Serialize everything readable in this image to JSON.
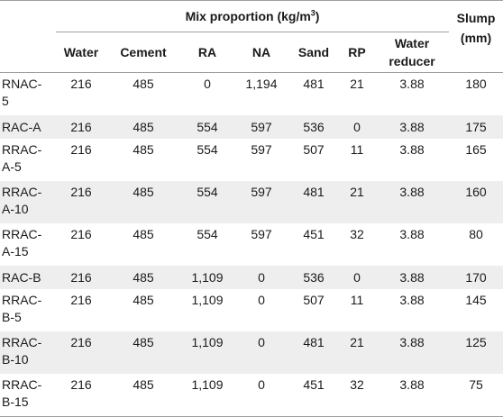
{
  "header": {
    "group_title": "Mix proportion (kg/m",
    "group_title_sup": "3",
    "group_title_end": ")",
    "slump_line1": "Slump",
    "slump_line2": "(mm)",
    "columns": [
      "Water",
      "Cement",
      "RA",
      "NA",
      "Sand",
      "RP",
      "Water reducer"
    ]
  },
  "rows": [
    {
      "mix": [
        "RNAC-",
        "5"
      ],
      "water": "216",
      "cement": "485",
      "ra": "0",
      "na": "1,194",
      "sand": "481",
      "rp": "21",
      "reducer": "3.88",
      "slump": "180"
    },
    {
      "mix": [
        "RAC-A"
      ],
      "water": "216",
      "cement": "485",
      "ra": "554",
      "na": "597",
      "sand": "536",
      "rp": "0",
      "reducer": "3.88",
      "slump": "175"
    },
    {
      "mix": [
        "RRAC-",
        "A-5"
      ],
      "water": "216",
      "cement": "485",
      "ra": "554",
      "na": "597",
      "sand": "507",
      "rp": "11",
      "reducer": "3.88",
      "slump": "165"
    },
    {
      "mix": [
        "RRAC-",
        "A-10"
      ],
      "water": "216",
      "cement": "485",
      "ra": "554",
      "na": "597",
      "sand": "481",
      "rp": "21",
      "reducer": "3.88",
      "slump": "160"
    },
    {
      "mix": [
        "RRAC-",
        "A-15"
      ],
      "water": "216",
      "cement": "485",
      "ra": "554",
      "na": "597",
      "sand": "451",
      "rp": "32",
      "reducer": "3.88",
      "slump": "80"
    },
    {
      "mix": [
        "RAC-B"
      ],
      "water": "216",
      "cement": "485",
      "ra": "1,109",
      "na": "0",
      "sand": "536",
      "rp": "0",
      "reducer": "3.88",
      "slump": "170"
    },
    {
      "mix": [
        "RRAC-",
        "B-5"
      ],
      "water": "216",
      "cement": "485",
      "ra": "1,109",
      "na": "0",
      "sand": "507",
      "rp": "11",
      "reducer": "3.88",
      "slump": "145"
    },
    {
      "mix": [
        "RRAC-",
        "B-10"
      ],
      "water": "216",
      "cement": "485",
      "ra": "1,109",
      "na": "0",
      "sand": "481",
      "rp": "21",
      "reducer": "3.88",
      "slump": "125"
    },
    {
      "mix": [
        "RRAC-",
        "B-15"
      ],
      "water": "216",
      "cement": "485",
      "ra": "1,109",
      "na": "0",
      "sand": "451",
      "rp": "32",
      "reducer": "3.88",
      "slump": "75"
    }
  ]
}
